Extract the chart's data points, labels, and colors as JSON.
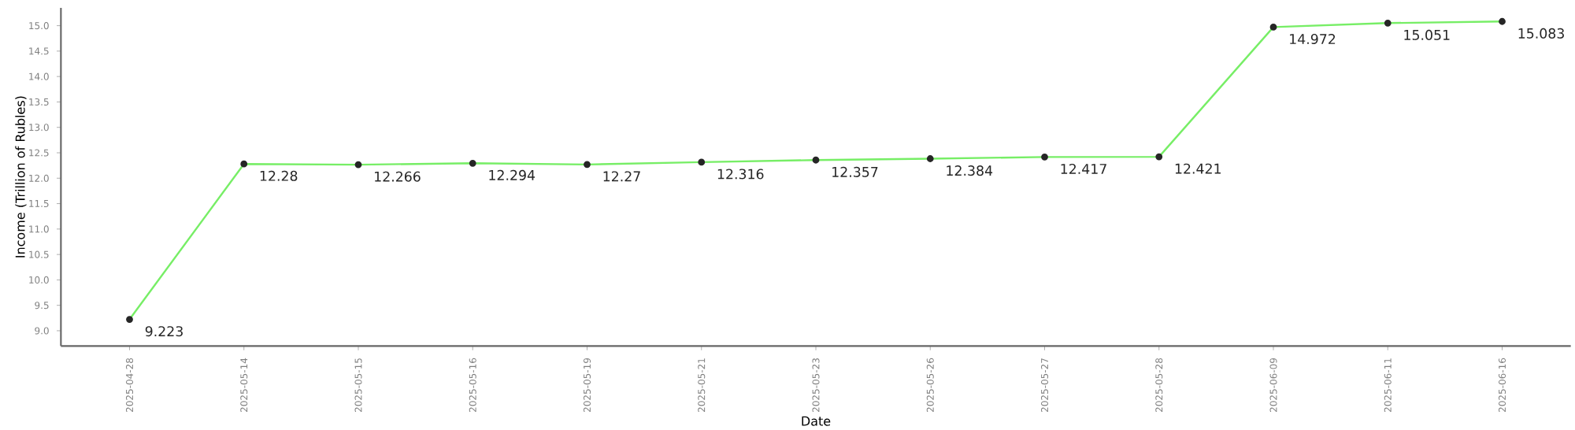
{
  "chart_data": {
    "type": "line",
    "xlabel": "Date",
    "ylabel": "Income (Trillion of Rubles)",
    "categories": [
      "2025-04-28",
      "2025-05-14",
      "2025-05-15",
      "2025-05-16",
      "2025-05-19",
      "2025-05-21",
      "2025-05-23",
      "2025-05-26",
      "2025-05-27",
      "2025-05-28",
      "2025-06-09",
      "2025-06-11",
      "2025-06-16"
    ],
    "series": [
      {
        "color": "#77ee66",
        "values": [
          9.223,
          12.28,
          12.266,
          12.294,
          12.27,
          12.316,
          12.357,
          12.384,
          12.417,
          12.421,
          14.972,
          15.051,
          15.083
        ]
      }
    ],
    "ylim": [
      8.7,
      15.35
    ],
    "yticks": [
      {
        "value": 9,
        "label": "9.0"
      },
      {
        "value": 9.5,
        "label": "9.5"
      },
      {
        "value": 10,
        "label": "10.0"
      },
      {
        "value": 10.5,
        "label": "10.5"
      },
      {
        "value": 11,
        "label": "11.0"
      },
      {
        "value": 11.5,
        "label": "11.5"
      },
      {
        "value": 12,
        "label": "12.0"
      },
      {
        "value": 12.5,
        "label": "12.5"
      },
      {
        "value": 13,
        "label": "13.0"
      },
      {
        "value": 13.5,
        "label": "13.5"
      },
      {
        "value": 14,
        "label": "14.0"
      },
      {
        "value": 14.5,
        "label": "14.5"
      },
      {
        "value": 15,
        "label": "15.0"
      }
    ],
    "data_labels": true,
    "marker": "circle",
    "line_style": "solid",
    "grid": false
  }
}
